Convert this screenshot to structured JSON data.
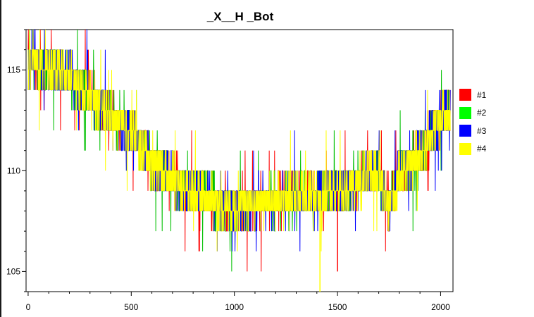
{
  "chart_data": {
    "type": "line",
    "title": "_X__H _Bot",
    "xlabel": "",
    "ylabel": "",
    "xlim": [
      -10,
      2060
    ],
    "ylim": [
      104,
      117
    ],
    "x_ticks": [
      0,
      500,
      1000,
      1500,
      2000
    ],
    "y_ticks": [
      105,
      110,
      115
    ],
    "grid": false,
    "legend_position": "right",
    "series": [
      {
        "name": "#1",
        "color": "#ff0000"
      },
      {
        "name": "#2",
        "color": "#00c000"
      },
      {
        "name": "#3",
        "color": "#0000ff"
      },
      {
        "name": "#4",
        "color": "#ffff00"
      }
    ],
    "trend": {
      "x": [
        0,
        100,
        200,
        300,
        400,
        500,
        600,
        700,
        800,
        900,
        1000,
        1100,
        1200,
        1300,
        1400,
        1500,
        1600,
        1700,
        1750,
        1800,
        1900,
        2000,
        2040
      ],
      "y": [
        115.5,
        115.2,
        114.6,
        113.6,
        112.6,
        112.0,
        110.4,
        109.6,
        108.9,
        108.5,
        108.3,
        108.4,
        108.5,
        108.6,
        108.7,
        109.0,
        109.5,
        109.8,
        108.0,
        109.8,
        110.8,
        112.6,
        112.8
      ]
    },
    "n_points": 2048
  }
}
